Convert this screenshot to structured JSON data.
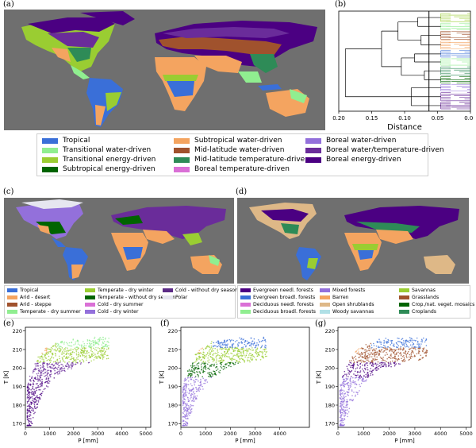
{
  "panels": {
    "a": "(a)",
    "b": "(b)",
    "c": "(c)",
    "d": "(d)",
    "e": "(e)",
    "f": "(f)",
    "g": "(g)"
  },
  "colors": {
    "ocean": "#707070",
    "tropical": "#3a6fd8",
    "transitional_water": "#90ee90",
    "transitional_energy": "#9acd32",
    "subtropical_energy": "#006400",
    "subtropical_water": "#f4a460",
    "midlat_water": "#a0522d",
    "midlat_temp": "#2e8b57",
    "boreal_temp": "#da70d6",
    "boreal_water": "#9370db",
    "boreal_wt": "#6a2c9a",
    "boreal_energy": "#4b0082",
    "polar": "#e6e6f0"
  },
  "legend_a": [
    {
      "label": "Tropical",
      "color": "#3a6fd8"
    },
    {
      "label": "Transitional water-driven",
      "color": "#90ee90"
    },
    {
      "label": "Transitional energy-driven",
      "color": "#9acd32"
    },
    {
      "label": "Subtropical energy-driven",
      "color": "#006400"
    },
    {
      "label": "Subtropical water-driven",
      "color": "#f4a460"
    },
    {
      "label": "Mid-latitude water-driven",
      "color": "#a0522d"
    },
    {
      "label": "Mid-latitude temperature-driven",
      "color": "#2e8b57"
    },
    {
      "label": "Boreal temperature-driven",
      "color": "#da70d6"
    },
    {
      "label": "Boreal water-driven",
      "color": "#9370db"
    },
    {
      "label": "Boreal water/temperature-driven",
      "color": "#6a2c9a"
    },
    {
      "label": "Boreal energy-driven",
      "color": "#4b0082"
    }
  ],
  "legend_c": [
    {
      "label": "Tropical",
      "color": "#3a6fd8"
    },
    {
      "label": "Arid - desert",
      "color": "#f4a460"
    },
    {
      "label": "Arid - steppe",
      "color": "#a0522d"
    },
    {
      "label": "Temperate - dry summer",
      "color": "#90ee90"
    },
    {
      "label": "Temperate - dry winter",
      "color": "#9acd32"
    },
    {
      "label": "Temperate - without dry season",
      "color": "#006400"
    },
    {
      "label": "Cold - dry summer",
      "color": "#da70d6"
    },
    {
      "label": "Cold - dry winter",
      "color": "#9370db"
    },
    {
      "label": "Cold - without dry season",
      "color": "#5b2a86"
    },
    {
      "label": "Polar",
      "color": "#e6e6f0"
    }
  ],
  "legend_d": [
    {
      "label": "Evergreen needl. forests",
      "color": "#4b0082"
    },
    {
      "label": "Evergreen broadl. forests",
      "color": "#3a6fd8"
    },
    {
      "label": "Deciduous needl. forests",
      "color": "#da70d6"
    },
    {
      "label": "Deciduous broadl. forests",
      "color": "#90ee90"
    },
    {
      "label": "Mixed forests",
      "color": "#9370db"
    },
    {
      "label": "Barren",
      "color": "#f4a460"
    },
    {
      "label": "Open shrublands",
      "color": "#deb887"
    },
    {
      "label": "Woody savannas",
      "color": "#b0e0e6"
    },
    {
      "label": "Savannas",
      "color": "#9acd32"
    },
    {
      "label": "Grasslands",
      "color": "#a0522d"
    },
    {
      "label": "Crop./nat. veget. mosaics",
      "color": "#006400"
    },
    {
      "label": "Croplands",
      "color": "#2e8b57"
    }
  ],
  "chart_data": [
    {
      "type": "dendrogram",
      "panel": "(b)",
      "xlabel": "Distance",
      "xticks": [
        "0.20",
        "0.15",
        "0.10",
        "0.05",
        "0.00"
      ],
      "xlim": [
        0.2,
        0.0
      ],
      "cut_distance": 0.063,
      "cluster_colors": [
        "#9acd32",
        "#90ee90",
        "#a0522d",
        "#f4a460",
        "#3a6fd8",
        "#90ee90",
        "#2e8b57",
        "#006400",
        "#9370db",
        "#6a2c9a",
        "#4b0082"
      ]
    },
    {
      "type": "scatter",
      "panel": "(e)",
      "xlabel": "P [mm]",
      "ylabel": "T [K]",
      "xlim": [
        0,
        5200
      ],
      "ylim": [
        168,
        222
      ],
      "xticks": [
        0,
        1000,
        2000,
        3000,
        4000,
        5000
      ],
      "yticks": [
        170,
        180,
        190,
        200,
        210,
        220
      ]
    },
    {
      "type": "scatter",
      "panel": "(f)",
      "xlabel": "P [mm]",
      "ylabel": "T [K]",
      "xlim": [
        0,
        5200
      ],
      "ylim": [
        168,
        222
      ],
      "xticks": [
        0,
        1000,
        2000,
        3000,
        4000
      ],
      "yticks": [
        170,
        180,
        190,
        200,
        210,
        220
      ]
    },
    {
      "type": "scatter",
      "panel": "(g)",
      "xlabel": "P [mm]",
      "ylabel": "T [K]",
      "xlim": [
        0,
        5200
      ],
      "ylim": [
        168,
        222
      ],
      "xticks": [
        0,
        1000,
        2000,
        3000,
        4000,
        5000
      ],
      "yticks": [
        170,
        180,
        190,
        200,
        210,
        220
      ]
    }
  ]
}
